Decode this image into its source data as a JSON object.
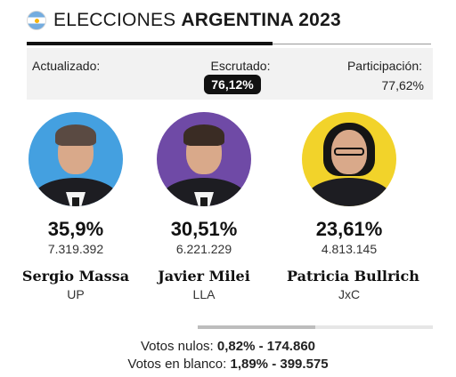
{
  "header": {
    "title_light": "ELECCIONES",
    "title_bold": "ARGENTINA 2023",
    "flag_icon": "argentina-flag-icon"
  },
  "stats": {
    "updated_label": "Actualizado:",
    "updated_value": "",
    "scrutinized_label": "Escrutado:",
    "scrutinized_value": "76,12%",
    "participation_label": "Participación:",
    "participation_value": "77,62%"
  },
  "candidates": [
    {
      "name": "Sergio Massa",
      "party": "UP",
      "percent": "35,9%",
      "votes": "7.319.392",
      "color": "#44a0e0"
    },
    {
      "name": "Javier Milei",
      "party": "LLA",
      "percent": "30,51%",
      "votes": "6.221.229",
      "color": "#6f4aa6"
    },
    {
      "name": "Patricia Bullrich",
      "party": "JxC",
      "percent": "23,61%",
      "votes": "4.813.145",
      "color": "#f2d32a"
    }
  ],
  "scroll_indicator": {
    "visible_fraction": 0.5
  },
  "footer": {
    "null_label": "Votos nulos:",
    "null_percent": "0,82%",
    "null_sep": "-",
    "null_count": "174.860",
    "blank_label": "Votos en blanco:",
    "blank_percent": "1,89%",
    "blank_sep": "-",
    "blank_count": "399.575"
  }
}
